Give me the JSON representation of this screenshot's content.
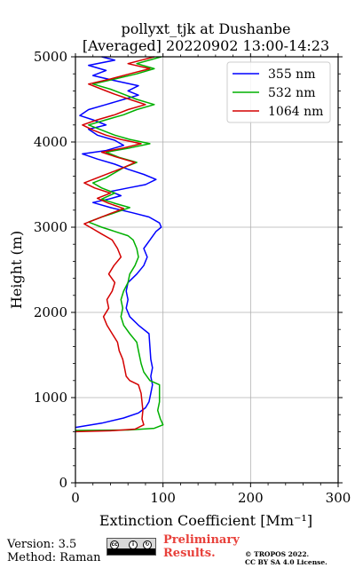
{
  "chart_data": {
    "type": "line",
    "title": "pollyxt_tjk at Dushanbe",
    "subtitle": "[Averaged] 20220902 13:00-14:23",
    "xlabel": "Extinction Coefficient [Mm⁻¹]",
    "ylabel": "Height (m)",
    "xlim": [
      0,
      300
    ],
    "ylim": [
      0,
      5000
    ],
    "xticks": [
      "0",
      "100",
      "200",
      "300"
    ],
    "yticks": [
      "0",
      "1000",
      "2000",
      "3000",
      "4000",
      "5000"
    ],
    "grid": true,
    "legend_position": "top-right",
    "series": [
      {
        "name": "355 nm",
        "color": "#0000ff",
        "points": [
          [
            0,
            650
          ],
          [
            30,
            700
          ],
          [
            55,
            760
          ],
          [
            72,
            820
          ],
          [
            80,
            880
          ],
          [
            84,
            950
          ],
          [
            86,
            1050
          ],
          [
            88,
            1150
          ],
          [
            86,
            1250
          ],
          [
            88,
            1350
          ],
          [
            86,
            1450
          ],
          [
            85,
            1600
          ],
          [
            84,
            1750
          ],
          [
            72,
            1850
          ],
          [
            62,
            1950
          ],
          [
            58,
            2050
          ],
          [
            60,
            2150
          ],
          [
            58,
            2250
          ],
          [
            60,
            2350
          ],
          [
            70,
            2450
          ],
          [
            78,
            2550
          ],
          [
            82,
            2650
          ],
          [
            78,
            2750
          ],
          [
            85,
            2850
          ],
          [
            92,
            2950
          ],
          [
            98,
            3000
          ],
          [
            96,
            3050
          ],
          [
            84,
            3120
          ],
          [
            65,
            3170
          ],
          [
            40,
            3230
          ],
          [
            20,
            3290
          ],
          [
            38,
            3330
          ],
          [
            52,
            3370
          ],
          [
            40,
            3420
          ],
          [
            60,
            3460
          ],
          [
            80,
            3500
          ],
          [
            92,
            3560
          ],
          [
            78,
            3620
          ],
          [
            60,
            3680
          ],
          [
            45,
            3740
          ],
          [
            25,
            3800
          ],
          [
            8,
            3860
          ],
          [
            35,
            3900
          ],
          [
            55,
            3960
          ],
          [
            45,
            4020
          ],
          [
            25,
            4080
          ],
          [
            15,
            4150
          ],
          [
            35,
            4200
          ],
          [
            20,
            4260
          ],
          [
            5,
            4310
          ],
          [
            15,
            4380
          ],
          [
            35,
            4440
          ],
          [
            55,
            4500
          ],
          [
            72,
            4550
          ],
          [
            60,
            4600
          ],
          [
            72,
            4660
          ],
          [
            45,
            4720
          ],
          [
            20,
            4780
          ],
          [
            35,
            4840
          ],
          [
            15,
            4900
          ],
          [
            45,
            4960
          ],
          [
            30,
            5000
          ]
        ]
      },
      {
        "name": "532 nm",
        "color": "#00b000",
        "points": [
          [
            0,
            615
          ],
          [
            60,
            620
          ],
          [
            90,
            640
          ],
          [
            100,
            680
          ],
          [
            97,
            750
          ],
          [
            94,
            850
          ],
          [
            96,
            950
          ],
          [
            96,
            1050
          ],
          [
            96,
            1150
          ],
          [
            85,
            1200
          ],
          [
            78,
            1300
          ],
          [
            75,
            1400
          ],
          [
            72,
            1550
          ],
          [
            70,
            1650
          ],
          [
            62,
            1750
          ],
          [
            55,
            1850
          ],
          [
            52,
            1950
          ],
          [
            54,
            2050
          ],
          [
            52,
            2150
          ],
          [
            55,
            2250
          ],
          [
            60,
            2350
          ],
          [
            62,
            2450
          ],
          [
            68,
            2550
          ],
          [
            72,
            2650
          ],
          [
            70,
            2750
          ],
          [
            66,
            2850
          ],
          [
            60,
            2900
          ],
          [
            45,
            2950
          ],
          [
            30,
            3000
          ],
          [
            15,
            3060
          ],
          [
            30,
            3120
          ],
          [
            45,
            3170
          ],
          [
            62,
            3230
          ],
          [
            45,
            3280
          ],
          [
            30,
            3330
          ],
          [
            45,
            3400
          ],
          [
            30,
            3460
          ],
          [
            20,
            3520
          ],
          [
            35,
            3580
          ],
          [
            45,
            3640
          ],
          [
            55,
            3700
          ],
          [
            70,
            3760
          ],
          [
            50,
            3820
          ],
          [
            35,
            3880
          ],
          [
            62,
            3930
          ],
          [
            85,
            3980
          ],
          [
            62,
            4030
          ],
          [
            45,
            4080
          ],
          [
            30,
            4140
          ],
          [
            15,
            4200
          ],
          [
            35,
            4260
          ],
          [
            55,
            4320
          ],
          [
            70,
            4380
          ],
          [
            90,
            4440
          ],
          [
            70,
            4500
          ],
          [
            55,
            4560
          ],
          [
            40,
            4620
          ],
          [
            20,
            4680
          ],
          [
            45,
            4740
          ],
          [
            70,
            4800
          ],
          [
            90,
            4860
          ],
          [
            70,
            4920
          ],
          [
            98,
            5000
          ]
        ]
      },
      {
        "name": "1064 nm",
        "color": "#d40000",
        "points": [
          [
            0,
            600
          ],
          [
            40,
            610
          ],
          [
            68,
            630
          ],
          [
            78,
            680
          ],
          [
            76,
            750
          ],
          [
            77,
            850
          ],
          [
            76,
            950
          ],
          [
            75,
            1050
          ],
          [
            72,
            1150
          ],
          [
            62,
            1200
          ],
          [
            58,
            1250
          ],
          [
            56,
            1350
          ],
          [
            54,
            1450
          ],
          [
            50,
            1550
          ],
          [
            48,
            1650
          ],
          [
            42,
            1750
          ],
          [
            36,
            1850
          ],
          [
            32,
            1950
          ],
          [
            38,
            2050
          ],
          [
            36,
            2150
          ],
          [
            42,
            2250
          ],
          [
            45,
            2350
          ],
          [
            38,
            2450
          ],
          [
            44,
            2550
          ],
          [
            52,
            2650
          ],
          [
            48,
            2750
          ],
          [
            42,
            2850
          ],
          [
            30,
            2920
          ],
          [
            20,
            2980
          ],
          [
            10,
            3040
          ],
          [
            25,
            3100
          ],
          [
            40,
            3160
          ],
          [
            55,
            3220
          ],
          [
            38,
            3280
          ],
          [
            25,
            3340
          ],
          [
            40,
            3400
          ],
          [
            22,
            3460
          ],
          [
            10,
            3520
          ],
          [
            25,
            3580
          ],
          [
            40,
            3640
          ],
          [
            55,
            3700
          ],
          [
            68,
            3760
          ],
          [
            48,
            3820
          ],
          [
            30,
            3880
          ],
          [
            55,
            3930
          ],
          [
            75,
            3980
          ],
          [
            52,
            4030
          ],
          [
            35,
            4080
          ],
          [
            20,
            4140
          ],
          [
            8,
            4200
          ],
          [
            25,
            4260
          ],
          [
            45,
            4320
          ],
          [
            60,
            4380
          ],
          [
            80,
            4440
          ],
          [
            62,
            4500
          ],
          [
            45,
            4560
          ],
          [
            30,
            4620
          ],
          [
            15,
            4680
          ],
          [
            40,
            4740
          ],
          [
            62,
            4800
          ],
          [
            85,
            4860
          ],
          [
            60,
            4920
          ],
          [
            90,
            5000
          ]
        ]
      }
    ]
  },
  "footer": {
    "version": "Version: 3.5",
    "method": "Method: Raman",
    "license_badge": [
      "cc",
      "BY",
      "SA"
    ],
    "preliminary_line1": "Preliminary",
    "preliminary_line2": "Results.",
    "copyright_line1": "© TROPOS 2022.",
    "copyright_line2": "CC BY SA 4.0 License."
  }
}
